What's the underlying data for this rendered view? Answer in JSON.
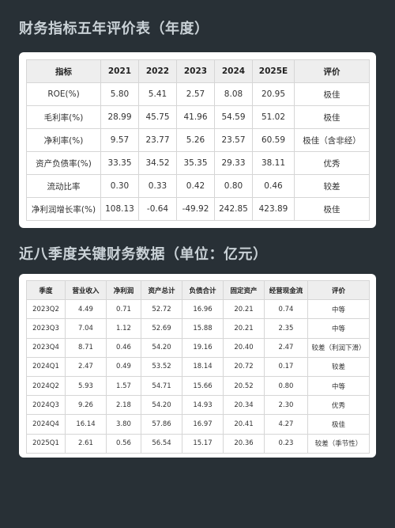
{
  "title1": "财务指标五年评价表（年度）",
  "title2": "近八季度关键财务数据（单位：亿元）",
  "annual": {
    "headers": [
      "指标",
      "2021",
      "2022",
      "2023",
      "2024",
      "2025E",
      "评价"
    ],
    "rows": [
      [
        "ROE(%)",
        "5.80",
        "5.41",
        "2.57",
        "8.08",
        "20.95",
        "极佳"
      ],
      [
        "毛利率(%)",
        "28.99",
        "45.75",
        "41.96",
        "54.59",
        "51.02",
        "极佳"
      ],
      [
        "净利率(%)",
        "9.57",
        "23.77",
        "5.26",
        "23.57",
        "60.59",
        "极佳（含非经）"
      ],
      [
        "资产负债率(%)",
        "33.35",
        "34.52",
        "35.35",
        "29.33",
        "38.11",
        "优秀"
      ],
      [
        "流动比率",
        "0.30",
        "0.33",
        "0.42",
        "0.80",
        "0.46",
        "较差"
      ],
      [
        "净利润增长率(%)",
        "108.13",
        "-0.64",
        "-49.92",
        "242.85",
        "423.89",
        "极佳"
      ]
    ]
  },
  "quarterly": {
    "headers": [
      "季度",
      "营业收入",
      "净利润",
      "资产总计",
      "负债合计",
      "固定资产",
      "经营现金流",
      "评价"
    ],
    "rows": [
      [
        "2023Q2",
        "4.49",
        "0.71",
        "52.72",
        "16.96",
        "20.21",
        "0.74",
        "中等"
      ],
      [
        "2023Q3",
        "7.04",
        "1.12",
        "52.69",
        "15.88",
        "20.21",
        "2.35",
        "中等"
      ],
      [
        "2023Q4",
        "8.71",
        "0.46",
        "54.20",
        "19.16",
        "20.40",
        "2.47",
        "较差（利润下滑）"
      ],
      [
        "2024Q1",
        "2.47",
        "0.49",
        "53.52",
        "18.14",
        "20.72",
        "0.17",
        "较差"
      ],
      [
        "2024Q2",
        "5.93",
        "1.57",
        "54.71",
        "15.66",
        "20.52",
        "0.80",
        "中等"
      ],
      [
        "2024Q3",
        "9.26",
        "2.18",
        "54.20",
        "14.93",
        "20.34",
        "2.30",
        "优秀"
      ],
      [
        "2024Q4",
        "16.14",
        "3.80",
        "57.86",
        "16.97",
        "20.41",
        "4.27",
        "极佳"
      ],
      [
        "2025Q1",
        "2.61",
        "0.56",
        "56.54",
        "15.17",
        "20.36",
        "0.23",
        "较差（季节性）"
      ]
    ]
  }
}
